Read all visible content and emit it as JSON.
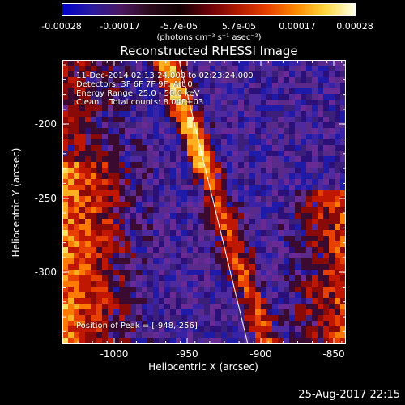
{
  "colorbar": {
    "tick_labels": [
      "-0.00028",
      "-0.00017",
      "-5.7e-05",
      "5.7e-05",
      "0.00017",
      "0.00028"
    ],
    "units": "(photons cm⁻² s⁻¹ asec⁻²)",
    "colors": [
      "#0000c8",
      "#2a1aa0",
      "#4a1860",
      "#2a0a1a",
      "#100002",
      "#6a0008",
      "#b01a00",
      "#e84000",
      "#ff8a00",
      "#ffd640",
      "#ffffe8"
    ]
  },
  "title": "Reconstructed RHESSI Image",
  "info": {
    "line1": "11-Dec-2014 02:13:24.000 to 02:23:24.000",
    "line2": "Detectors: 3F 6F 7F 9F, Att 0",
    "line3": "Energy Range: 25.0 - 50.0 keV",
    "line4": "Clean    Total counts: 8.04E+03"
  },
  "peak_text": "Position of Peak = [-948,-256]",
  "axes": {
    "xlabel": "Heliocentric X (arcsec)",
    "ylabel": "Heliocentric Y (arcsec)",
    "xticks": [
      "-1000",
      "-950",
      "-900",
      "-850"
    ],
    "yticks": [
      "-200",
      "-250",
      "-300"
    ],
    "xlim": [
      -1035,
      -840
    ],
    "ylim": [
      -350,
      -150
    ]
  },
  "timestamp": "25-Aug-2017 22:15"
}
